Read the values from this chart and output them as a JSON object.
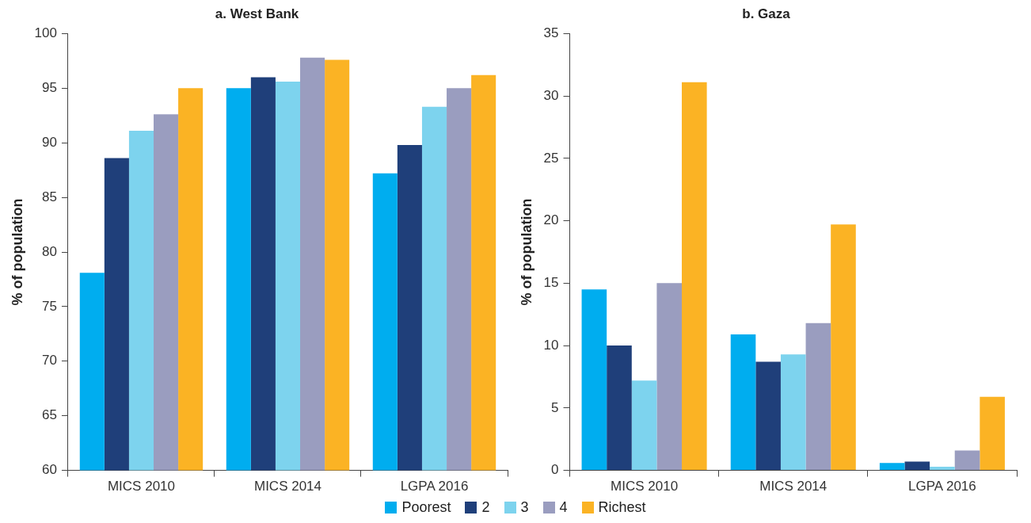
{
  "chart_data": [
    {
      "type": "bar",
      "title": "a. West Bank",
      "ylabel": "% of population",
      "categories": [
        "MICS 2010",
        "MICS 2014",
        "LGPA 2016"
      ],
      "ylim": [
        60,
        100
      ],
      "yticks": [
        60,
        65,
        70,
        75,
        80,
        85,
        90,
        95,
        100
      ],
      "grid": false,
      "series": [
        {
          "color": "#00adef",
          "values": [
            78.1,
            95.0,
            87.2
          ]
        },
        {
          "color": "#1f3f7a",
          "values": [
            88.6,
            96.0,
            89.8
          ]
        },
        {
          "color": "#7dd3ee",
          "values": [
            91.1,
            95.6,
            93.3
          ]
        },
        {
          "color": "#9a9dbf",
          "values": [
            92.6,
            97.8,
            95.0
          ]
        },
        {
          "color": "#fbb324",
          "values": [
            95.0,
            97.6,
            96.2
          ]
        }
      ]
    },
    {
      "type": "bar",
      "title": "b. Gaza",
      "ylabel": "% of population",
      "categories": [
        "MICS 2010",
        "MICS 2014",
        "LGPA 2016"
      ],
      "ylim": [
        0,
        35
      ],
      "yticks": [
        0,
        5,
        10,
        15,
        20,
        25,
        30,
        35
      ],
      "grid": false,
      "legend": "bottom",
      "series": [
        {
          "name": "Poorest",
          "color": "#00adef",
          "values": [
            14.5,
            10.9,
            0.6
          ]
        },
        {
          "name": "2",
          "color": "#1f3f7a",
          "values": [
            10.0,
            8.7,
            0.7
          ]
        },
        {
          "name": "3",
          "color": "#7dd3ee",
          "values": [
            7.2,
            9.3,
            0.3
          ]
        },
        {
          "name": "4",
          "color": "#9a9dbf",
          "values": [
            15.0,
            11.8,
            1.6
          ]
        },
        {
          "name": "Richest",
          "color": "#fbb324",
          "values": [
            31.1,
            19.7,
            5.9
          ]
        }
      ]
    }
  ]
}
